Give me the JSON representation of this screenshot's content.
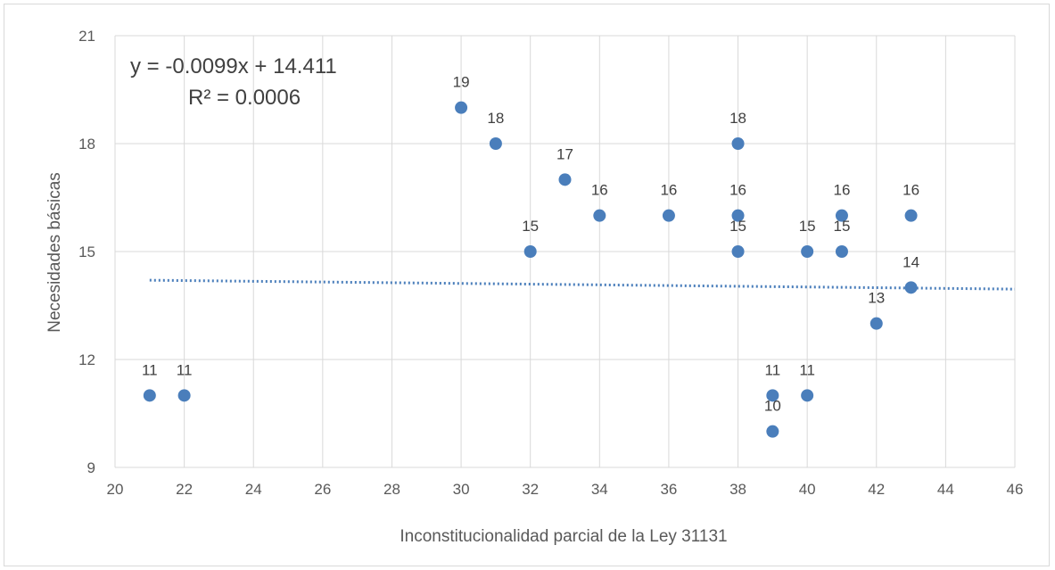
{
  "chart_data": {
    "type": "scatter",
    "title": "",
    "xlabel": "Inconstitucionalidad parcial de la Ley 31131",
    "ylabel": "Necesidades básicas",
    "xlim": [
      20,
      46
    ],
    "ylim": [
      9,
      21
    ],
    "xticks": [
      20,
      22,
      24,
      26,
      28,
      30,
      32,
      34,
      36,
      38,
      40,
      42,
      44,
      46
    ],
    "yticks": [
      9,
      12,
      15,
      18,
      21
    ],
    "xtick_labels": [
      "20",
      "22",
      "24",
      "26",
      "28",
      "30",
      "32",
      "34",
      "36",
      "38",
      "40",
      "42",
      "44",
      "46"
    ],
    "ytick_labels": [
      "9",
      "12",
      "15",
      "18",
      "21"
    ],
    "grid": true,
    "point_color": "#4a7ebb",
    "trendline_color": "#4a7ebb",
    "points": [
      {
        "x": 21,
        "y": 11,
        "label": "11"
      },
      {
        "x": 22,
        "y": 11,
        "label": "11"
      },
      {
        "x": 30,
        "y": 19,
        "label": "19"
      },
      {
        "x": 31,
        "y": 18,
        "label": "18"
      },
      {
        "x": 32,
        "y": 15,
        "label": "15"
      },
      {
        "x": 33,
        "y": 17,
        "label": "17"
      },
      {
        "x": 34,
        "y": 16,
        "label": "16"
      },
      {
        "x": 36,
        "y": 16,
        "label": "16"
      },
      {
        "x": 38,
        "y": 18,
        "label": "18"
      },
      {
        "x": 38,
        "y": 16,
        "label": "16"
      },
      {
        "x": 38,
        "y": 15,
        "label": "15"
      },
      {
        "x": 39,
        "y": 11,
        "label": "11"
      },
      {
        "x": 39,
        "y": 10,
        "label": "10"
      },
      {
        "x": 40,
        "y": 15,
        "label": "15"
      },
      {
        "x": 40,
        "y": 11,
        "label": "11"
      },
      {
        "x": 41,
        "y": 16,
        "label": "16"
      },
      {
        "x": 41,
        "y": 15,
        "label": "15"
      },
      {
        "x": 42,
        "y": 13,
        "label": "13"
      },
      {
        "x": 43,
        "y": 16,
        "label": "16"
      },
      {
        "x": 43,
        "y": 14,
        "label": "14"
      }
    ],
    "trendline": {
      "type": "linear",
      "slope": -0.0099,
      "intercept": 14.411,
      "x_from": 21,
      "x_to": 46,
      "equation": "y = -0.0099x + 14.411",
      "r_squared": "R² = 0.0006"
    }
  }
}
